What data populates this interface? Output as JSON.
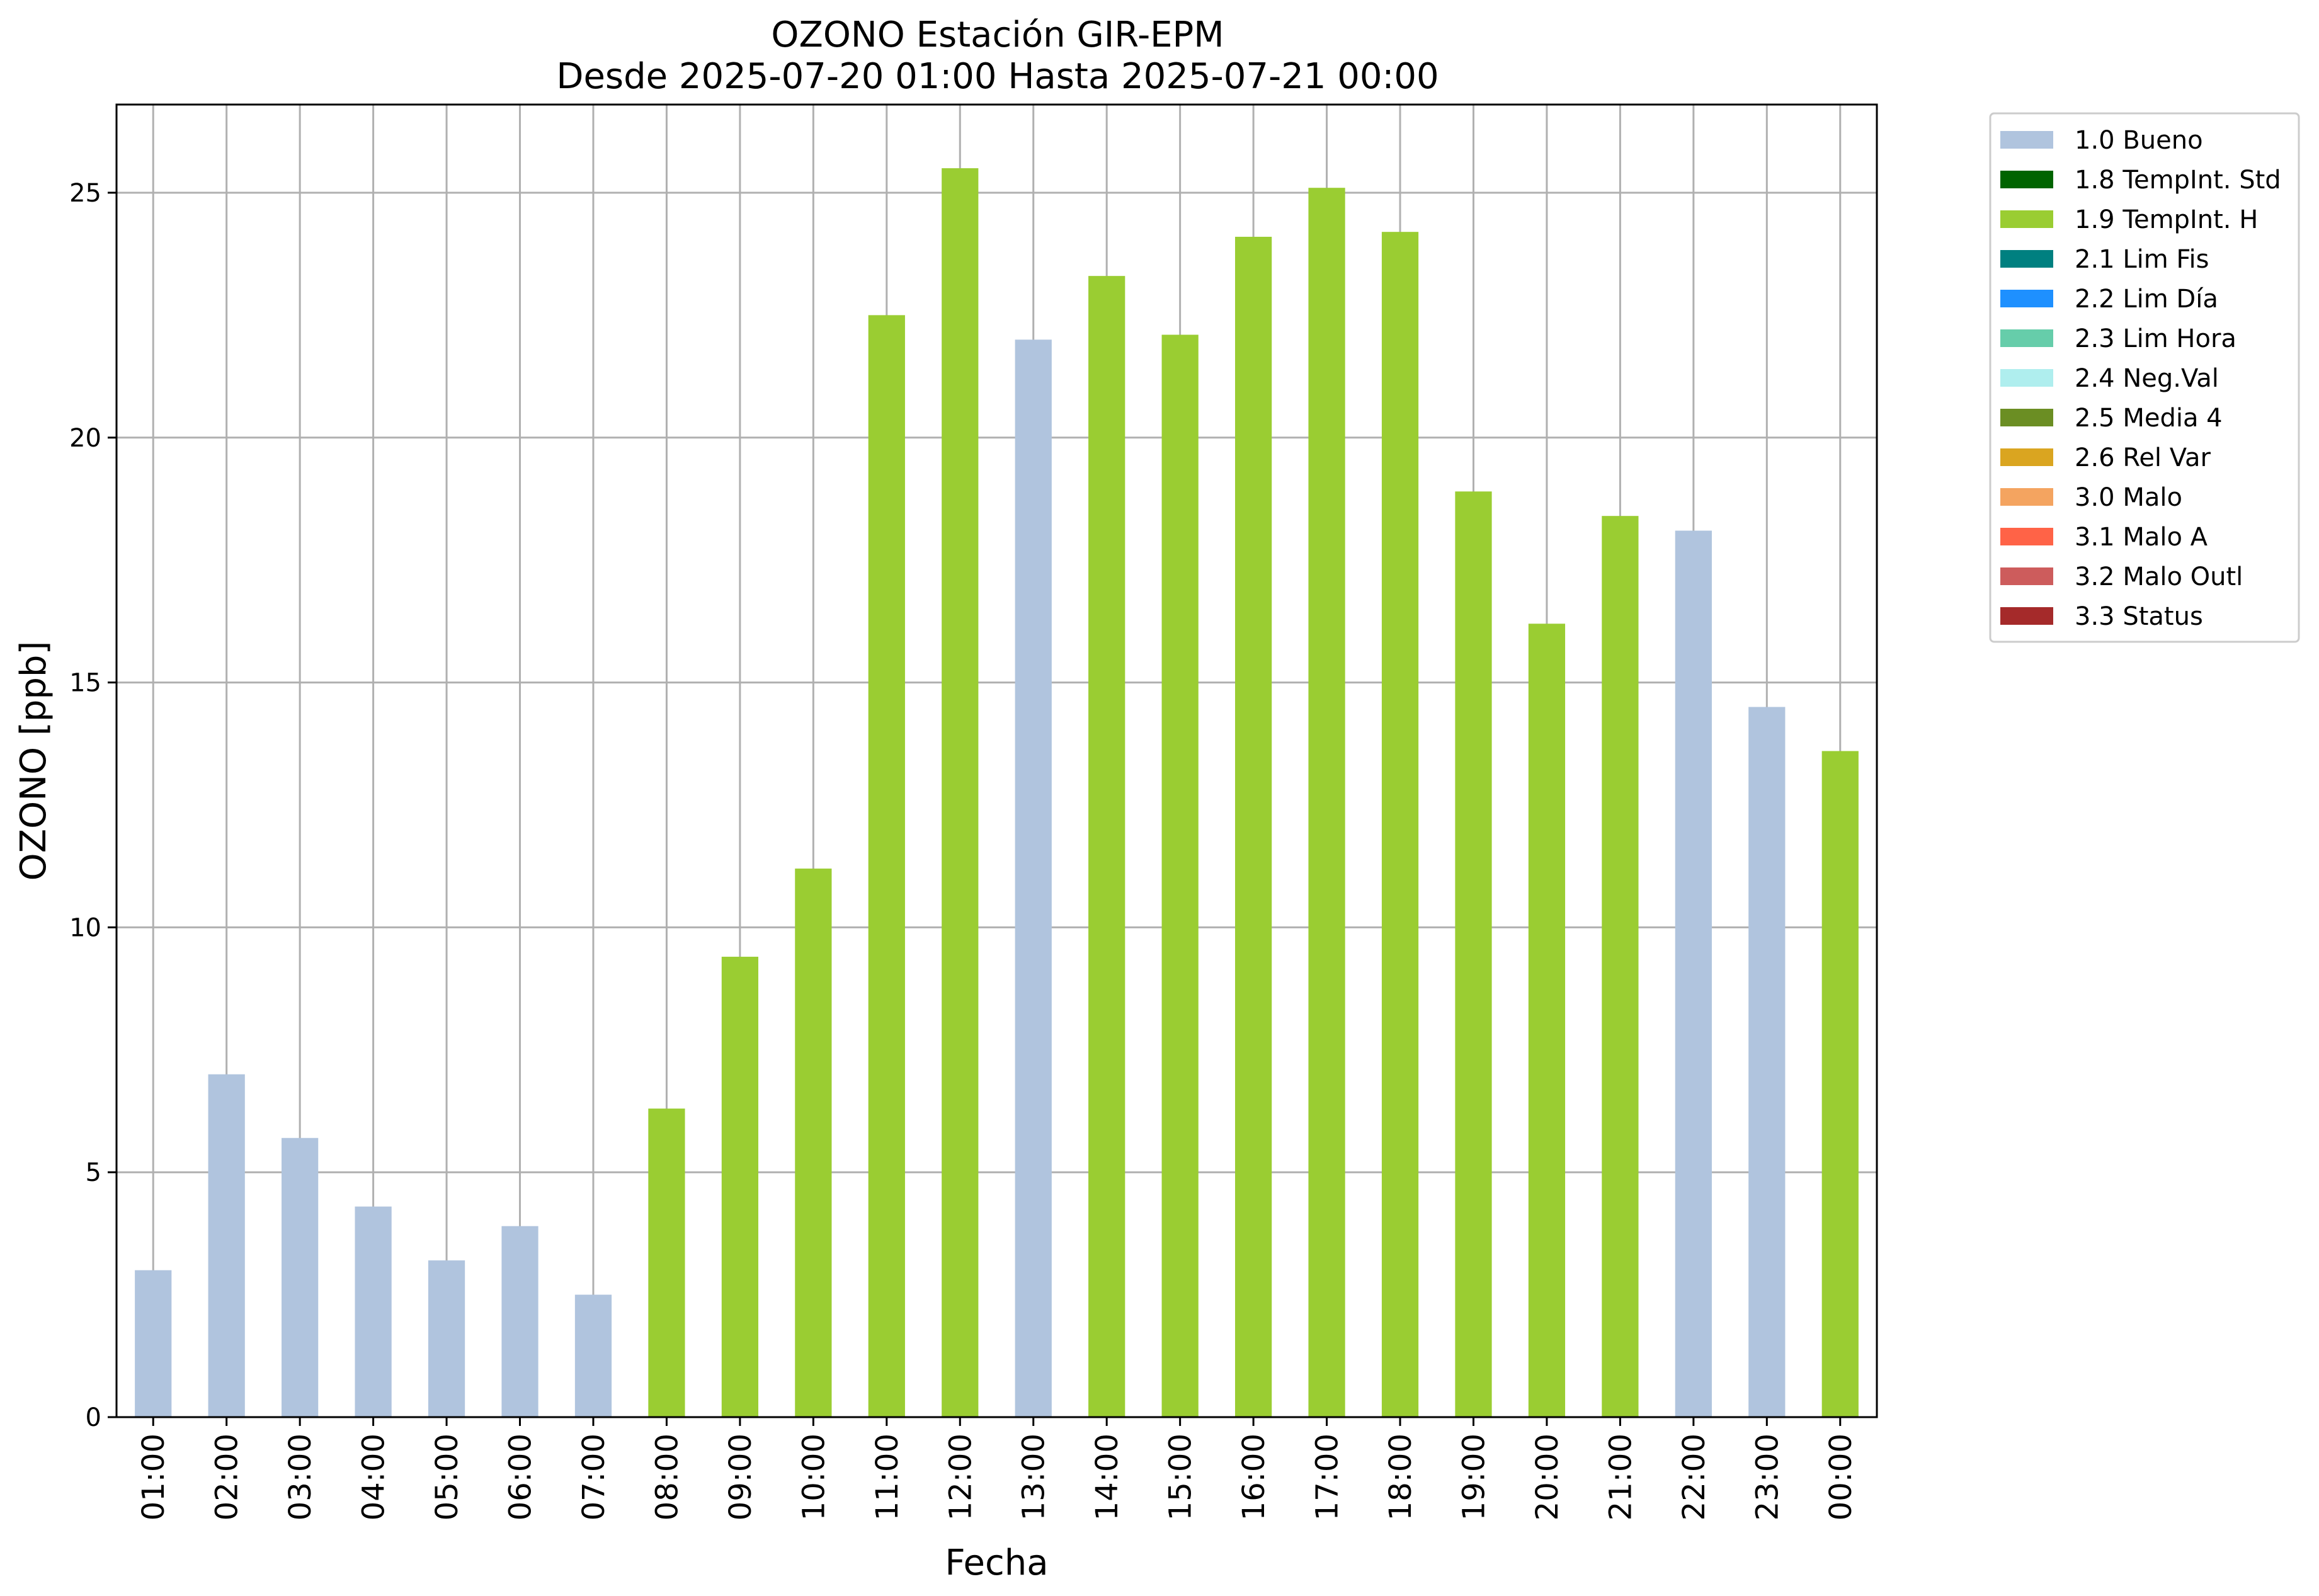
{
  "chart_data": {
    "type": "bar",
    "title": "OZONO Estación GIR-EPM",
    "subtitle": "Desde 2025-07-20 01:00 Hasta 2025-07-21 00:00",
    "xlabel": "Fecha",
    "ylabel": "OZONO [ppb]",
    "ylim": [
      0,
      26.8
    ],
    "yticks": [
      0,
      5,
      10,
      15,
      20,
      25
    ],
    "grid": true,
    "legend_position": "outside-top-right",
    "categories": [
      "01:00",
      "02:00",
      "03:00",
      "04:00",
      "05:00",
      "06:00",
      "07:00",
      "08:00",
      "09:00",
      "10:00",
      "11:00",
      "12:00",
      "13:00",
      "14:00",
      "15:00",
      "16:00",
      "17:00",
      "18:00",
      "19:00",
      "20:00",
      "21:00",
      "22:00",
      "23:00",
      "00:00"
    ],
    "values": [
      3.0,
      7.0,
      5.7,
      4.3,
      3.2,
      3.9,
      2.5,
      6.3,
      9.4,
      11.2,
      22.5,
      25.5,
      22.0,
      23.3,
      22.1,
      24.1,
      25.1,
      24.2,
      18.9,
      16.2,
      18.4,
      18.1,
      14.5,
      13.6
    ],
    "flags": [
      "1.0 Bueno",
      "1.0 Bueno",
      "1.0 Bueno",
      "1.0 Bueno",
      "1.0 Bueno",
      "1.0 Bueno",
      "1.0 Bueno",
      "1.9 TempInt. H",
      "1.9 TempInt. H",
      "1.9 TempInt. H",
      "1.9 TempInt. H",
      "1.9 TempInt. H",
      "1.0 Bueno",
      "1.9 TempInt. H",
      "1.9 TempInt. H",
      "1.9 TempInt. H",
      "1.9 TempInt. H",
      "1.9 TempInt. H",
      "1.9 TempInt. H",
      "1.9 TempInt. H",
      "1.9 TempInt. H",
      "1.0 Bueno",
      "1.0 Bueno",
      "1.9 TempInt. H"
    ],
    "legend": [
      {
        "label": "1.0 Bueno",
        "color": "#b0c4de"
      },
      {
        "label": "1.8 TempInt. Std",
        "color": "#006400"
      },
      {
        "label": "1.9 TempInt. H",
        "color": "#9acd32"
      },
      {
        "label": "2.1 Lim Fis",
        "color": "#008080"
      },
      {
        "label": "2.2 Lim Día",
        "color": "#1e90ff"
      },
      {
        "label": "2.3 Lim Hora",
        "color": "#66cdaa"
      },
      {
        "label": "2.4 Neg.Val",
        "color": "#afeeee"
      },
      {
        "label": "2.5 Media 4",
        "color": "#6b8e23"
      },
      {
        "label": "2.6 Rel Var",
        "color": "#daa520"
      },
      {
        "label": "3.0 Malo",
        "color": "#f4a460"
      },
      {
        "label": "3.1 Malo A",
        "color": "#ff6347"
      },
      {
        "label": "3.2 Malo Outl",
        "color": "#cd5c5c"
      },
      {
        "label": "3.3 Status",
        "color": "#a52a2a"
      }
    ]
  }
}
